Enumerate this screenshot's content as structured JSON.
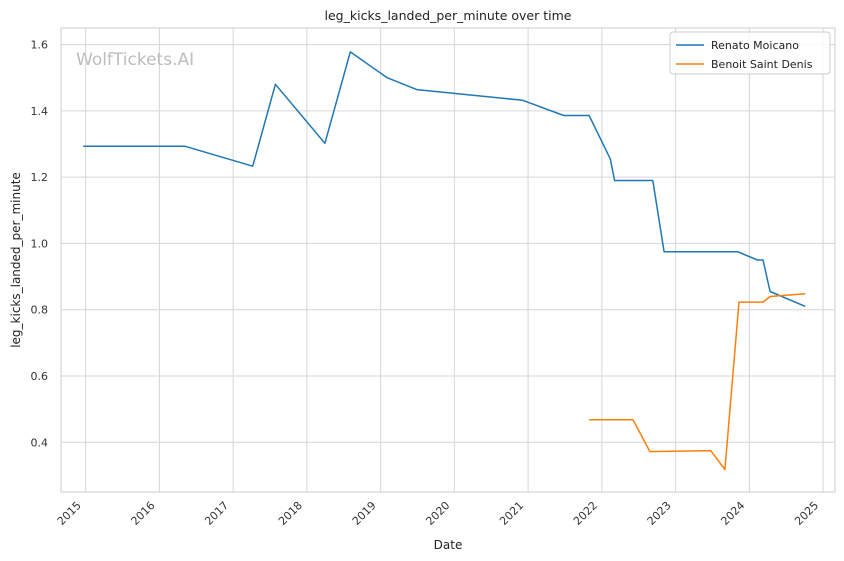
{
  "chart_data": {
    "type": "line",
    "title": "leg_kicks_landed_per_minute over time",
    "xlabel": "Date",
    "ylabel": "leg_kicks_landed_per_minute",
    "watermark": "WolfTickets.AI",
    "x_ticks": [
      "2015",
      "2016",
      "2017",
      "2018",
      "2019",
      "2020",
      "2021",
      "2022",
      "2023",
      "2024",
      "2025"
    ],
    "y_ticks": [
      "0.4",
      "0.6",
      "0.8",
      "1.0",
      "1.2",
      "1.4",
      "1.6"
    ],
    "xlim": [
      "2014-09-01",
      "2025-03-01"
    ],
    "ylim": [
      0.25,
      1.65
    ],
    "grid": true,
    "legend_position": "top-right",
    "series": [
      {
        "name": "Renato Moicano",
        "color": "#1f77b4",
        "points": [
          [
            "2014-12-20",
            1.293
          ],
          [
            "2016-05-08",
            1.293
          ],
          [
            "2017-04-08",
            1.233
          ],
          [
            "2017-07-29",
            1.48
          ],
          [
            "2018-03-31",
            1.302
          ],
          [
            "2018-08-04",
            1.578
          ],
          [
            "2019-02-02",
            1.5
          ],
          [
            "2019-06-29",
            1.464
          ],
          [
            "2020-12-05",
            1.432
          ],
          [
            "2021-06-26",
            1.386
          ],
          [
            "2021-10-30",
            1.386
          ],
          [
            "2022-02-12",
            1.255
          ],
          [
            "2022-03-05",
            1.19
          ],
          [
            "2022-09-10",
            1.19
          ],
          [
            "2022-11-05",
            0.975
          ],
          [
            "2023-11-04",
            0.975
          ],
          [
            "2024-02-10",
            0.95
          ],
          [
            "2024-03-09",
            0.95
          ],
          [
            "2024-04-13",
            0.855
          ],
          [
            "2024-10-05",
            0.81
          ]
        ]
      },
      {
        "name": "Benoit Saint Denis",
        "color": "#ff7f0e",
        "points": [
          [
            "2021-10-30",
            0.468
          ],
          [
            "2022-06-04",
            0.468
          ],
          [
            "2022-08-27",
            0.372
          ],
          [
            "2023-06-24",
            0.375
          ],
          [
            "2023-09-02",
            0.318
          ],
          [
            "2023-11-11",
            0.823
          ],
          [
            "2024-03-09",
            0.823
          ],
          [
            "2024-04-13",
            0.84
          ],
          [
            "2024-10-05",
            0.848
          ]
        ]
      }
    ]
  }
}
